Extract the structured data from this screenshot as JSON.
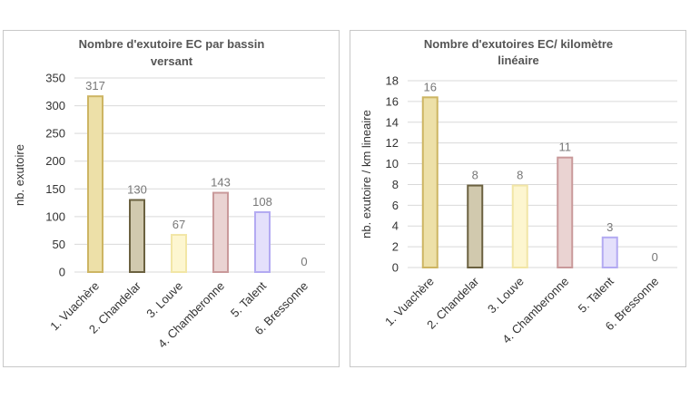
{
  "chart_data": [
    {
      "type": "bar",
      "title": [
        "Nombre d'exutoire EC par bassin",
        "versant"
      ],
      "ylabel": "nb. exutoire",
      "xlabel": "",
      "ylim": [
        0,
        350
      ],
      "yticks": [
        0,
        50,
        100,
        150,
        200,
        250,
        300,
        350
      ],
      "grid": true,
      "categories": [
        "1. Vuachère",
        "2. Chandelar",
        "3. Louve",
        "4. Chamberonne",
        "5. Talent",
        "6. Bressonne"
      ],
      "values": [
        317,
        130,
        67,
        143,
        108,
        0
      ],
      "labels": [
        "317",
        "130",
        "67",
        "143",
        "108",
        "0"
      ],
      "fills": [
        "#ede0a8",
        "#d1c9ae",
        "#fdf6d0",
        "#ead3d2",
        "#e4e0fb",
        "#ffffff"
      ],
      "strokes": [
        "#cdb563",
        "#6b6140",
        "#f2e6a6",
        "#c9999a",
        "#b3aaf2",
        "#ffffff"
      ]
    },
    {
      "type": "bar",
      "title": [
        "Nombre d'exutoires EC/ kilomètre",
        "linéaire"
      ],
      "ylabel": "nb. exutoire / km lineaire",
      "xlabel": "",
      "ylim": [
        0,
        18
      ],
      "yticks": [
        0,
        2,
        4,
        6,
        8,
        10,
        12,
        14,
        16,
        18
      ],
      "grid": true,
      "categories": [
        "1. Vuachère",
        "2. Chandelar",
        "3. Louve",
        "4. Chamberonne",
        "5. Talent",
        "6. Bressonne"
      ],
      "values": [
        16.4,
        7.9,
        7.9,
        10.6,
        2.9,
        0
      ],
      "labels": [
        "16",
        "8",
        "8",
        "11",
        "3",
        "0"
      ],
      "fills": [
        "#ede0a8",
        "#d1c9ae",
        "#fdf6d0",
        "#ead3d2",
        "#e4e0fb",
        "#ffffff"
      ],
      "strokes": [
        "#cdb563",
        "#6b6140",
        "#f2e6a6",
        "#c9999a",
        "#b3aaf2",
        "#ffffff"
      ]
    }
  ]
}
